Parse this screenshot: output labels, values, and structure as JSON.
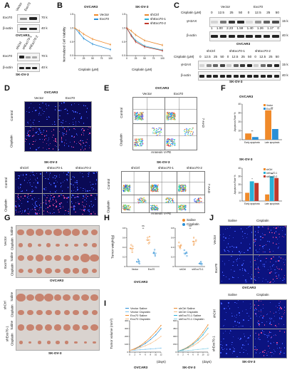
{
  "panel_letters": [
    "A",
    "B",
    "C",
    "D",
    "E",
    "F",
    "G",
    "H",
    "I",
    "J"
  ],
  "colors": {
    "vector": "#2a8fd6",
    "exo70": "#f08a2a",
    "shctrl": "#e8892e",
    "shexo70_1": "#2ab0d6",
    "shexo70_2": "#c0392b",
    "micro_bg": "#0a0a55",
    "tumor": "#c7836f"
  },
  "A": {
    "lanes_top": [
      "Vector",
      "Exo70"
    ],
    "lanes_bottom": [
      "shCtrl",
      "shExo70-1",
      "shExo70-2"
    ],
    "rows": [
      "Exo70",
      "β-actin"
    ],
    "markers": [
      "70 k",
      "40 k"
    ],
    "cell_top": "OVCAR3",
    "cell_bottom": "SK-OV-3"
  },
  "B": {
    "left_title": "OVCAR3",
    "right_title": "SK-OV-3",
    "xlabel": "Cisplatin (μM)",
    "ylabel": "Normalized Cell Viability",
    "left_legend": [
      "Vector",
      "Exo70"
    ],
    "right_legend": [
      "shCtrl",
      "shExo70-1",
      "shExo70-2"
    ],
    "xticks": [
      "0",
      "25",
      "50",
      "75",
      "100"
    ],
    "yticks": [
      "0.0",
      "0.5",
      "1.0",
      "1.5"
    ]
  },
  "C": {
    "top_groups": [
      "Vector",
      "Exo70"
    ],
    "top_doses": [
      "0",
      "12.5",
      "25",
      "50",
      "0",
      "12.5",
      "25",
      "50"
    ],
    "top_quant": [
      "1",
      "1.00",
      "2.23",
      "1.59",
      "1.40",
      "1.26",
      "1.17",
      "0"
    ],
    "bottom_groups": [
      "shCtrl",
      "shExo70-1",
      "shExo70-2"
    ],
    "bottom_doses": [
      "0",
      "12.5",
      "25",
      "50",
      "0",
      "12.5",
      "25",
      "50",
      "0",
      "12.5",
      "25",
      "50"
    ],
    "rows": [
      "γH2AX",
      "β-actin"
    ],
    "dose_label": "Cisplatin (μM)",
    "markers": [
      "15 k",
      "40 k"
    ],
    "cell_top": "OVCAR3",
    "cell_bottom": "SK-OV-3"
  },
  "D": {
    "top_title": "OVCAR3",
    "top_cols": [
      "Vector",
      "Exo70"
    ],
    "bottom_title": "SK-OV-3",
    "bottom_cols": [
      "shCtrl",
      "shExo70-1",
      "shExo70-2"
    ],
    "rows": [
      "Control",
      "Cisplatin"
    ]
  },
  "E": {
    "top_title": "OVCAR3",
    "top_cols": [
      "Vector",
      "Exo70"
    ],
    "bottom_title": "SK-OV-3",
    "bottom_cols": [
      "shCtrl",
      "shExo70-1",
      "shExo70-2"
    ],
    "rows": [
      "Control",
      "Cisplatin"
    ],
    "xlabel": "Annexin V-PE",
    "ylabel": "7-AAD"
  },
  "F": {
    "top_title": "OVCAR3",
    "bottom_title": "SK-OV-3"
  },
  "G": {
    "top_groups": [
      "Vector",
      "Exo70"
    ],
    "top_rows": [
      "Saline",
      "Cisplatin",
      "Saline",
      "Cisplatin"
    ],
    "top_caption": "OVCAR3",
    "bottom_groups": [
      "shCtrl",
      "shExo70-1"
    ],
    "bottom_rows": [
      "Saline",
      "Cisplatin",
      "Saline",
      "Cisplatin"
    ],
    "bottom_caption": "SK-OV-3"
  },
  "H": {
    "caption": "OVCAR3",
    "legend": [
      "Saline",
      "Cisplatin"
    ],
    "ylabel": "Tumor weight(g)",
    "sig": [
      "ns",
      "**",
      "ns",
      "**"
    ]
  },
  "I": {
    "ylabel": "Tumor volume (mm³)",
    "xlabel": "(days)",
    "left_caption": "OVCAR3",
    "right_caption": "SK-OV-3",
    "left_legend": [
      "Vector Saline",
      "Vector Cisplatin",
      "Exo70 Saline",
      "Exo70 Cisplatin"
    ],
    "right_legend": [
      "shCtrl Saline",
      "shCtrl Cisplatin",
      "shExo70-1 Saline",
      "shExo70-1 Cisplatin"
    ]
  },
  "J": {
    "cols": [
      "Saline",
      "Cisplatin"
    ],
    "top_rows": [
      "Vector",
      "Exo70"
    ],
    "top_caption": "OVCAR3",
    "bottom_rows": [
      "shCtrl",
      "shExo70-1"
    ],
    "bottom_caption": "SK-OV-3"
  },
  "chart_data": [
    {
      "panel": "B-left",
      "type": "line",
      "title": "OVCAR3",
      "xlabel": "Cisplatin (μM)",
      "ylabel": "Normalized Cell Viability",
      "x": [
        0,
        12.5,
        25,
        50,
        100
      ],
      "ylim": [
        0,
        1.5
      ],
      "series": [
        {
          "name": "Vector",
          "values": [
            1.0,
            0.82,
            0.62,
            0.42,
            0.22
          ]
        },
        {
          "name": "Exo70",
          "values": [
            1.0,
            0.9,
            0.78,
            0.6,
            0.4
          ]
        }
      ]
    },
    {
      "panel": "B-right",
      "type": "line",
      "title": "SK-OV-3",
      "xlabel": "Cisplatin (μM)",
      "ylabel": "Normalized Cell Viability",
      "x": [
        0,
        12.5,
        25,
        50,
        100
      ],
      "ylim": [
        0,
        1.5
      ],
      "series": [
        {
          "name": "shCtrl",
          "values": [
            1.0,
            0.9,
            0.75,
            0.55,
            0.38
          ]
        },
        {
          "name": "shExo70-1",
          "values": [
            1.0,
            0.75,
            0.55,
            0.35,
            0.2
          ]
        },
        {
          "name": "shExo70-2",
          "values": [
            1.0,
            0.72,
            0.5,
            0.32,
            0.18
          ]
        }
      ]
    },
    {
      "panel": "F-top",
      "type": "bar",
      "title": "OVCAR3",
      "ylabel": "Apoptosis Rate %",
      "categories": [
        "Early apoptosis",
        "Late apoptosis"
      ],
      "ylim": [
        0,
        40
      ],
      "series": [
        {
          "name": "Vector",
          "values": [
            7,
            33
          ]
        },
        {
          "name": "Exo70",
          "values": [
            3,
            12
          ]
        }
      ],
      "annotations": [
        "**",
        "**"
      ]
    },
    {
      "panel": "F-bottom",
      "type": "bar",
      "title": "SK-OV-3",
      "ylabel": "Apoptosis Rate %",
      "categories": [
        "Early apoptosis",
        "Late apoptosis"
      ],
      "ylim": [
        0,
        40
      ],
      "series": [
        {
          "name": "shCtrl",
          "values": [
            10,
            8
          ]
        },
        {
          "name": "shExo70-1",
          "values": [
            24,
            30
          ]
        },
        {
          "name": "shExo70-2",
          "values": [
            22,
            28
          ]
        }
      ],
      "annotations": [
        "*",
        "**"
      ]
    },
    {
      "panel": "H-left",
      "type": "scatter",
      "ylabel": "Tumor weight(g)",
      "categories": [
        "Vector",
        "Exo70"
      ],
      "ylim": [
        0,
        0.8
      ],
      "series": [
        {
          "name": "Saline",
          "values": [
            [
              0.42,
              0.35,
              0.3,
              0.38,
              0.45
            ],
            [
              0.55,
              0.5,
              0.6,
              0.48,
              0.62
            ]
          ]
        },
        {
          "name": "Cisplatin",
          "values": [
            [
              0.12,
              0.08,
              0.15,
              0.1,
              0.06
            ],
            [
              0.3,
              0.25,
              0.35,
              0.28,
              0.22
            ]
          ]
        }
      ]
    },
    {
      "panel": "H-right",
      "type": "scatter",
      "ylabel": "Tumor weight(g)",
      "categories": [
        "shCtrl",
        "shExo70-1"
      ],
      "ylim": [
        0,
        0.8
      ],
      "series": [
        {
          "name": "Saline",
          "values": [
            [
              0.45,
              0.4,
              0.5,
              0.38,
              0.42
            ],
            [
              0.55,
              0.48,
              0.6,
              0.52,
              0.45
            ]
          ]
        },
        {
          "name": "Cisplatin",
          "values": [
            [
              0.3,
              0.26,
              0.34,
              0.28,
              0.22
            ],
            [
              0.08,
              0.05,
              0.1,
              0.06,
              0.04
            ]
          ]
        }
      ]
    },
    {
      "panel": "I-left",
      "type": "line",
      "ylabel": "Tumor volume (mm³)",
      "xlabel": "(days)",
      "x": [
        0,
        2,
        4,
        6,
        8,
        10,
        12
      ],
      "ylim": [
        0,
        400
      ],
      "series": [
        {
          "name": "Vector Saline",
          "values": [
            20,
            40,
            70,
            110,
            160,
            220,
            300
          ]
        },
        {
          "name": "Vector Cisplatin",
          "values": [
            20,
            25,
            30,
            35,
            40,
            45,
            50
          ]
        },
        {
          "name": "Exo70 Saline",
          "values": [
            20,
            45,
            80,
            130,
            190,
            260,
            340
          ]
        },
        {
          "name": "Exo70 Cisplatin",
          "values": [
            20,
            35,
            55,
            80,
            110,
            150,
            200
          ]
        }
      ]
    },
    {
      "panel": "I-right",
      "type": "line",
      "ylabel": "Tumor volume (mm³)",
      "xlabel": "(days)",
      "x": [
        0,
        2,
        4,
        6,
        8,
        10,
        12
      ],
      "ylim": [
        0,
        600
      ],
      "series": [
        {
          "name": "shCtrl Saline",
          "values": [
            20,
            50,
            100,
            170,
            260,
            380,
            520
          ]
        },
        {
          "name": "shCtrl Cisplatin",
          "values": [
            20,
            40,
            75,
            120,
            180,
            260,
            350
          ]
        },
        {
          "name": "shExo70-1 Saline",
          "values": [
            20,
            45,
            90,
            150,
            230,
            330,
            460
          ]
        },
        {
          "name": "shExo70-1 Cisplatin",
          "values": [
            20,
            25,
            30,
            40,
            50,
            60,
            70
          ]
        }
      ]
    }
  ]
}
